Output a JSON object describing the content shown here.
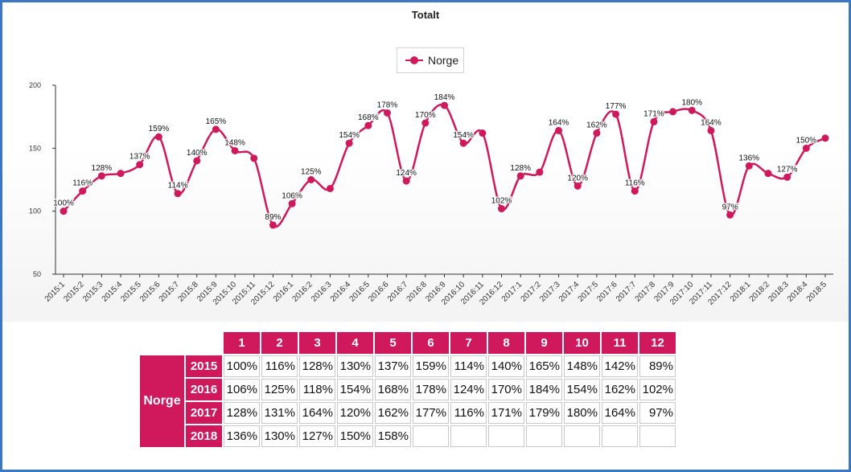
{
  "chart_data": {
    "type": "line",
    "title": "Totalt",
    "legend": "top-center",
    "series": [
      {
        "name": "Norge",
        "color": "#d0195c",
        "values": [
          100,
          116,
          128,
          130,
          137,
          159,
          114,
          140,
          165,
          148,
          142,
          89,
          106,
          125,
          118,
          154,
          168,
          178,
          124,
          170,
          184,
          154,
          162,
          102,
          128,
          131,
          164,
          120,
          162,
          177,
          116,
          171,
          179,
          180,
          164,
          97,
          136,
          130,
          127,
          150,
          158
        ],
        "labels": [
          "100%",
          "116%",
          "128%",
          "",
          "137%",
          "159%",
          "114%",
          "140%",
          "165%",
          "148%",
          "",
          "89%",
          "106%",
          "125%",
          "",
          "154%",
          "168%",
          "178%",
          "124%",
          "170%",
          "184%",
          "154%",
          "",
          "102%",
          "128%",
          "",
          "164%",
          "120%",
          "162%",
          "177%",
          "116%",
          "171%",
          "",
          "180%",
          "164%",
          "97%",
          "136%",
          "",
          "127%",
          "150%",
          ""
        ]
      }
    ],
    "x": [
      "2015:1",
      "2015:2",
      "2015:3",
      "2015:4",
      "2015:5",
      "2015:6",
      "2015:7",
      "2015:8",
      "2015:9",
      "2015:10",
      "2015:11",
      "2015:12",
      "2016:1",
      "2016:2",
      "2016:3",
      "2016:4",
      "2016:5",
      "2016:6",
      "2016:7",
      "2016:8",
      "2016:9",
      "2016:10",
      "2016:11",
      "2016:12",
      "2017:1",
      "2017:2",
      "2017:3",
      "2017:4",
      "2017:5",
      "2017:6",
      "2017:7",
      "2017:8",
      "2017:9",
      "2017:10",
      "2017:11",
      "2017:12",
      "2018:1",
      "2018:2",
      "2018:3",
      "2018:4",
      "2018:5"
    ],
    "ylim": [
      50,
      200
    ],
    "yticks": [
      "50",
      "100",
      "150",
      "200"
    ],
    "xlabel": "",
    "ylabel": ""
  },
  "table": {
    "row_label": "Norge",
    "months": [
      "1",
      "2",
      "3",
      "4",
      "5",
      "6",
      "7",
      "8",
      "9",
      "10",
      "11",
      "12"
    ],
    "rows": [
      {
        "year": "2015",
        "values": [
          "100%",
          "116%",
          "128%",
          "130%",
          "137%",
          "159%",
          "114%",
          "140%",
          "165%",
          "148%",
          "142%",
          "89%"
        ]
      },
      {
        "year": "2016",
        "values": [
          "106%",
          "125%",
          "118%",
          "154%",
          "168%",
          "178%",
          "124%",
          "170%",
          "184%",
          "154%",
          "162%",
          "102%"
        ]
      },
      {
        "year": "2017",
        "values": [
          "128%",
          "131%",
          "164%",
          "120%",
          "162%",
          "177%",
          "116%",
          "171%",
          "179%",
          "180%",
          "164%",
          "97%"
        ]
      },
      {
        "year": "2018",
        "values": [
          "136%",
          "130%",
          "127%",
          "150%",
          "158%",
          "",
          "",
          "",
          "",
          "",
          "",
          ""
        ]
      }
    ]
  }
}
